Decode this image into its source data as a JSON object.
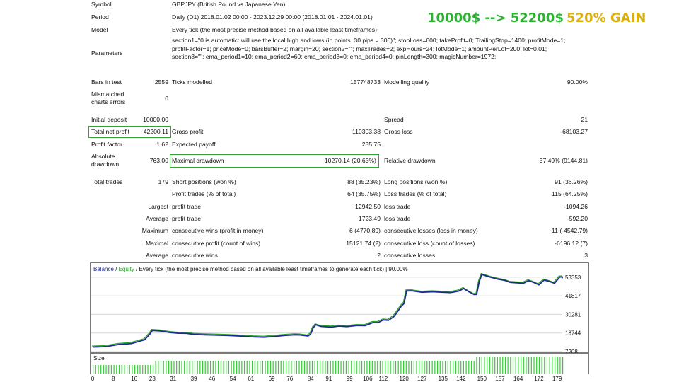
{
  "headline": {
    "gain": "10000$ --> 52200$",
    "pct": "520% GAIN",
    "gain_color": "#2db033",
    "pct_color": "#d9b00e"
  },
  "report": {
    "symbol": {
      "label": "Symbol",
      "value": "GBPJPY (British Pound vs Japanese Yen)"
    },
    "period": {
      "label": "Period",
      "value": "Daily (D1) 2018.01.02 00:00 - 2023.12.29 00:00 (2018.01.01 - 2024.01.01)"
    },
    "model": {
      "label": "Model",
      "value": "Every tick (the most precise method based on all available least timeframes)"
    },
    "parameters": {
      "label": "Parameters",
      "value": "section1=\"0 is automatic: will use the local high and lows (in points. 30 pips = 300)\"; stopLoss=600; takeProfit=0; TrailingStop=1400; profitMode=1; profitFactor=1; priceMode=0; barsBuffer=2; margin=20; section2=\"\"; maxTrades=2; expHours=24; lotMode=1; amountPerLot=200; lot=0.01; section3=\"\"; ema_period1=10; ema_period2=60; ema_period3=0; ema_period4=0; pinLength=300; magicNumber=1972;"
    },
    "bars_in_test": {
      "label": "Bars in test",
      "value": "2559"
    },
    "ticks_modelled": {
      "label": "Ticks modelled",
      "value": "157748733"
    },
    "modelling_quality": {
      "label": "Modelling quality",
      "value": "90.00%"
    },
    "mismatched": {
      "label1": "Mismatched",
      "label2": "charts errors",
      "value": "0"
    },
    "initial_deposit": {
      "label": "Initial deposit",
      "value": "10000.00"
    },
    "spread": {
      "label": "Spread",
      "value": "21"
    },
    "total_net_profit": {
      "label": "Total net profit",
      "value": "42200.11"
    },
    "gross_profit": {
      "label": "Gross profit",
      "value": "110303.38"
    },
    "gross_loss": {
      "label": "Gross loss",
      "value": "-68103.27"
    },
    "profit_factor": {
      "label": "Profit factor",
      "value": "1.62"
    },
    "expected_payoff": {
      "label": "Expected payoff",
      "value": "235.75"
    },
    "absolute_drawdown": {
      "label1": "Absolute",
      "label2": "drawdown",
      "value": "763.00"
    },
    "maximal_drawdown": {
      "label": "Maximal drawdown",
      "value": "10270.14 (20.63%)"
    },
    "relative_drawdown": {
      "label": "Relative drawdown",
      "value": "37.49% (9144.81)"
    },
    "total_trades": {
      "label": "Total trades",
      "value": "179"
    },
    "short_positions": {
      "label": "Short positions (won %)",
      "value": "88 (35.23%)"
    },
    "long_positions": {
      "label": "Long positions (won %)",
      "value": "91 (36.26%)"
    },
    "profit_trades": {
      "label": "Profit trades (% of total)",
      "value": "64 (35.75%)"
    },
    "loss_trades": {
      "label": "Loss trades (% of total)",
      "value": "115 (64.25%)"
    },
    "largest": {
      "label": "Largest",
      "profit_label": "profit trade",
      "profit_value": "12942.50",
      "loss_label": "loss trade",
      "loss_value": "-1094.26"
    },
    "average": {
      "label": "Average",
      "profit_label": "profit trade",
      "profit_value": "1723.49",
      "loss_label": "loss trade",
      "loss_value": "-592.20"
    },
    "maximum": {
      "label": "Maximum",
      "wins_label": "consecutive wins (profit in money)",
      "wins_value": "6 (4770.89)",
      "losses_label": "consecutive losses (loss in money)",
      "losses_value": "11 (-4542.79)"
    },
    "maximal": {
      "label": "Maximal",
      "wins_label": "consecutive profit (count of wins)",
      "wins_value": "15121.74 (2)",
      "losses_label": "consecutive loss (count of losses)",
      "losses_value": "-6196.12 (7)"
    },
    "average_consec": {
      "label": "Average",
      "wins_label": "consecutive wins",
      "wins_value": "2",
      "losses_label": "consecutive losses",
      "losses_value": "3"
    }
  },
  "chart_data": {
    "type": "line",
    "title": "Every tick (the most precise method based on all available least timeframes to generate each tick)",
    "quality": "90.00%",
    "legend": {
      "balance": "Balance",
      "equity": "Equity"
    },
    "sep1": " / ",
    "sep2": " / ",
    "sep3": " | ",
    "colors": {
      "balance": "#1f2a8f",
      "equity": "#2aa02a",
      "grid": "#d7d7d7",
      "volume": "#33cc33"
    },
    "size_label": "Size",
    "ylim": [
      7208,
      59000
    ],
    "y_ticks": [
      "53353",
      "41817",
      "30281",
      "18744",
      "7208"
    ],
    "x_ticks": [
      "0",
      "8",
      "16",
      "23",
      "31",
      "39",
      "46",
      "54",
      "61",
      "69",
      "76",
      "84",
      "91",
      "99",
      "106",
      "112",
      "120",
      "127",
      "135",
      "142",
      "150",
      "157",
      "164",
      "172",
      "179"
    ],
    "xlim": [
      0,
      181
    ],
    "balance": [
      [
        0,
        10000
      ],
      [
        5,
        10300
      ],
      [
        10,
        11600
      ],
      [
        15,
        12200
      ],
      [
        20,
        14500
      ],
      [
        22,
        18000
      ],
      [
        23,
        20300
      ],
      [
        26,
        20000
      ],
      [
        30,
        19000
      ],
      [
        33,
        18600
      ],
      [
        36,
        18500
      ],
      [
        39,
        17900
      ],
      [
        43,
        17600
      ],
      [
        47,
        17400
      ],
      [
        52,
        17200
      ],
      [
        57,
        16800
      ],
      [
        62,
        16300
      ],
      [
        66,
        16100
      ],
      [
        70,
        16600
      ],
      [
        74,
        17200
      ],
      [
        78,
        17600
      ],
      [
        80,
        17500
      ],
      [
        83,
        16900
      ],
      [
        84,
        18000
      ],
      [
        85,
        22000
      ],
      [
        86,
        23800
      ],
      [
        88,
        22800
      ],
      [
        92,
        22400
      ],
      [
        95,
        23000
      ],
      [
        98,
        22700
      ],
      [
        102,
        23400
      ],
      [
        105,
        23300
      ],
      [
        108,
        25200
      ],
      [
        110,
        25200
      ],
      [
        112,
        26800
      ],
      [
        114,
        26600
      ],
      [
        116,
        28800
      ],
      [
        117,
        30800
      ],
      [
        119,
        35500
      ],
      [
        120,
        37000
      ],
      [
        121,
        44800
      ],
      [
        123,
        44900
      ],
      [
        127,
        44000
      ],
      [
        131,
        44300
      ],
      [
        135,
        44000
      ],
      [
        138,
        43800
      ],
      [
        141,
        44700
      ],
      [
        143,
        46300
      ],
      [
        145,
        44300
      ],
      [
        147,
        42600
      ],
      [
        148,
        42700
      ],
      [
        149,
        50700
      ],
      [
        150,
        55000
      ],
      [
        153,
        53500
      ],
      [
        156,
        52200
      ],
      [
        159,
        51300
      ],
      [
        161,
        50100
      ],
      [
        164,
        49800
      ],
      [
        166,
        49600
      ],
      [
        168,
        51200
      ],
      [
        170,
        50100
      ],
      [
        172,
        48600
      ],
      [
        174,
        51600
      ],
      [
        176,
        50700
      ],
      [
        178,
        49600
      ],
      [
        180,
        53400
      ],
      [
        181,
        53500
      ],
      [
        183,
        53200
      ],
      [
        184,
        52700
      ]
    ],
    "volume": [
      1,
      1,
      1,
      1,
      1,
      1,
      1,
      1,
      1,
      1,
      1,
      1,
      1,
      1,
      1,
      1,
      1,
      1,
      1,
      1,
      1,
      1,
      1,
      1,
      2,
      2,
      2,
      2,
      2,
      2,
      2,
      2,
      2,
      2,
      2,
      2,
      2,
      2,
      2,
      2,
      2,
      2,
      2,
      2,
      2,
      2,
      2,
      2,
      2,
      2,
      2,
      2,
      2,
      2,
      2,
      2,
      2,
      2,
      2,
      2,
      2,
      2,
      2,
      2,
      2,
      2,
      2,
      2,
      2,
      2,
      2,
      2,
      2,
      2,
      2,
      2,
      2,
      2,
      2,
      2,
      2,
      2,
      2,
      2,
      2,
      2,
      2,
      2,
      2,
      2,
      2,
      2,
      2,
      2,
      2,
      2,
      2,
      2,
      2,
      2,
      2,
      2,
      2,
      2,
      2,
      2,
      2,
      2,
      2,
      2,
      2,
      2,
      2,
      2,
      2,
      2,
      2,
      2,
      2,
      2,
      2,
      2,
      2,
      2,
      2,
      2,
      2,
      2,
      2,
      2,
      2,
      2,
      2,
      2,
      2,
      2,
      2,
      2,
      2,
      2,
      2,
      2,
      2,
      2,
      2,
      2,
      2,
      3,
      3,
      3,
      3,
      3,
      3,
      3,
      3,
      3,
      3,
      3,
      3,
      3,
      3,
      3,
      3,
      3,
      3,
      3,
      3,
      3,
      3,
      3,
      3,
      3,
      3,
      3,
      3,
      3,
      3,
      3,
      3,
      3,
      3
    ]
  }
}
